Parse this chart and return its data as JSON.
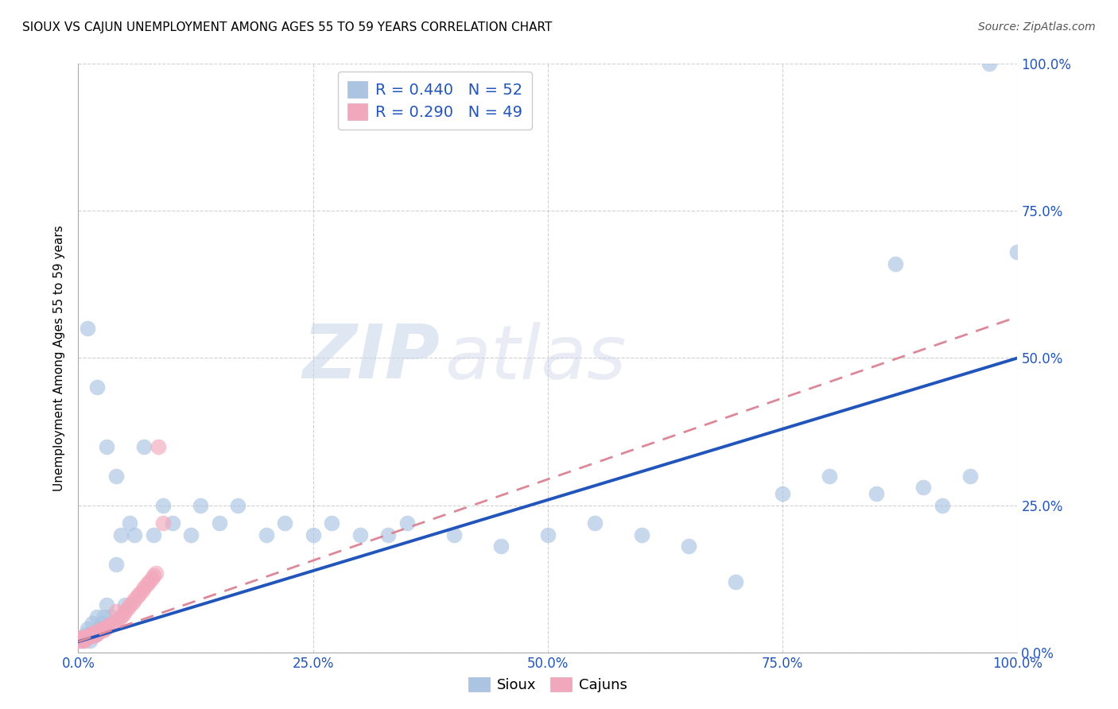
{
  "title": "SIOUX VS CAJUN UNEMPLOYMENT AMONG AGES 55 TO 59 YEARS CORRELATION CHART",
  "source": "Source: ZipAtlas.com",
  "ylabel": "Unemployment Among Ages 55 to 59 years",
  "sioux_R": 0.44,
  "sioux_N": 52,
  "cajun_R": 0.29,
  "cajun_N": 49,
  "sioux_color": "#aac4e2",
  "cajun_color": "#f2a8bc",
  "sioux_line_color": "#2255bb",
  "cajun_line_color": "#dd8899",
  "watermark_zip": "ZIP",
  "watermark_atlas": "atlas",
  "xlim": [
    0.0,
    1.0
  ],
  "ylim": [
    0.0,
    1.0
  ],
  "tick_vals": [
    0.0,
    0.25,
    0.5,
    0.75,
    1.0
  ],
  "tick_labels": [
    "0.0%",
    "25.0%",
    "50.0%",
    "75.0%",
    "100.0%"
  ],
  "sioux_line_x0": 0.0,
  "sioux_line_y0": 0.018,
  "sioux_line_x1": 1.0,
  "sioux_line_y1": 0.5,
  "cajun_line_x0": 0.0,
  "cajun_line_y0": 0.018,
  "cajun_line_x1": 1.0,
  "cajun_line_y1": 0.57,
  "sioux_x": [
    0.005,
    0.008,
    0.01,
    0.012,
    0.015,
    0.018,
    0.02,
    0.022,
    0.025,
    0.028,
    0.03,
    0.035,
    0.04,
    0.045,
    0.05,
    0.055,
    0.06,
    0.07,
    0.08,
    0.09,
    0.1,
    0.12,
    0.13,
    0.15,
    0.17,
    0.2,
    0.22,
    0.25,
    0.27,
    0.3,
    0.33,
    0.35,
    0.4,
    0.45,
    0.5,
    0.55,
    0.6,
    0.65,
    0.7,
    0.75,
    0.8,
    0.85,
    0.87,
    0.9,
    0.92,
    0.95,
    0.97,
    1.0,
    0.01,
    0.02,
    0.03,
    0.04
  ],
  "sioux_y": [
    0.02,
    0.03,
    0.04,
    0.02,
    0.05,
    0.03,
    0.06,
    0.04,
    0.05,
    0.06,
    0.08,
    0.06,
    0.15,
    0.2,
    0.08,
    0.22,
    0.2,
    0.35,
    0.2,
    0.25,
    0.22,
    0.2,
    0.25,
    0.22,
    0.25,
    0.2,
    0.22,
    0.2,
    0.22,
    0.2,
    0.2,
    0.22,
    0.2,
    0.18,
    0.2,
    0.22,
    0.2,
    0.18,
    0.12,
    0.27,
    0.3,
    0.27,
    0.66,
    0.28,
    0.25,
    0.3,
    1.0,
    0.68,
    0.55,
    0.45,
    0.35,
    0.3
  ],
  "cajun_x": [
    0.0,
    0.001,
    0.002,
    0.003,
    0.004,
    0.005,
    0.006,
    0.007,
    0.008,
    0.009,
    0.01,
    0.011,
    0.012,
    0.013,
    0.015,
    0.016,
    0.017,
    0.018,
    0.019,
    0.02,
    0.022,
    0.023,
    0.025,
    0.027,
    0.028,
    0.03,
    0.032,
    0.035,
    0.038,
    0.04,
    0.042,
    0.045,
    0.048,
    0.05,
    0.053,
    0.055,
    0.058,
    0.06,
    0.063,
    0.065,
    0.068,
    0.07,
    0.073,
    0.075,
    0.078,
    0.08,
    0.083,
    0.085,
    0.09
  ],
  "cajun_y": [
    0.02,
    0.022,
    0.025,
    0.02,
    0.022,
    0.025,
    0.02,
    0.022,
    0.025,
    0.027,
    0.025,
    0.027,
    0.028,
    0.03,
    0.03,
    0.032,
    0.028,
    0.035,
    0.03,
    0.032,
    0.035,
    0.038,
    0.04,
    0.038,
    0.04,
    0.042,
    0.045,
    0.048,
    0.05,
    0.07,
    0.055,
    0.06,
    0.065,
    0.07,
    0.075,
    0.08,
    0.085,
    0.09,
    0.095,
    0.1,
    0.105,
    0.11,
    0.115,
    0.12,
    0.125,
    0.13,
    0.135,
    0.35,
    0.22
  ]
}
